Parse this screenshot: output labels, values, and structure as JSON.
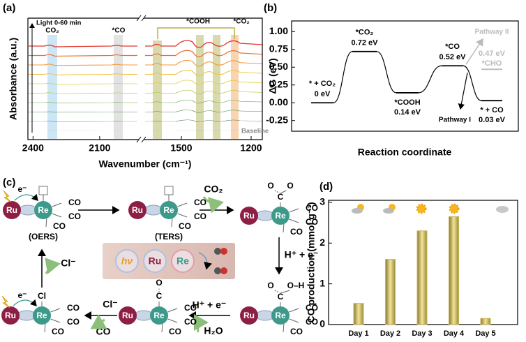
{
  "chart_data": [
    {
      "type": "spectra",
      "panel_label": "(a)",
      "ylabel": "Absorbance (a.u.)",
      "xlabel": "Wavenumber (cm⁻¹)",
      "xlim": [
        [
          2420,
          1930
        ],
        [
          1656,
          1152
        ]
      ],
      "xticks": [
        2400,
        2100,
        1500,
        1200
      ],
      "legend": "Light 0-60 min",
      "annotations": [
        "CO₂",
        "*CO",
        "*COOH",
        "*CO₂"
      ],
      "baseline": "Baseline"
    },
    {
      "type": "energy",
      "panel_label": "(b)",
      "ylabel": "ΔG (eV)",
      "xlabel": "Reaction coordinate",
      "ylim": [
        -0.4,
        1.15
      ],
      "yticks": [
        {
          "value": -0.25,
          "label": "-0.25"
        },
        {
          "value": 0,
          "label": "0.00"
        },
        {
          "value": 0.25,
          "label": "0.25"
        },
        {
          "value": 0.5,
          "label": "0.50"
        },
        {
          "value": 0.75,
          "label": "0.75"
        },
        {
          "value": 1,
          "label": "1.00"
        }
      ],
      "color": "#000000",
      "levels": [
        {
          "name": "* + CO₂",
          "value": 0,
          "value_label": "0 eV"
        },
        {
          "name": "*CO₂",
          "value": 0.72,
          "value_label": "0.72 eV"
        },
        {
          "name": "*COOH",
          "value": 0.14,
          "value_label": "0.14 eV"
        },
        {
          "name": "*CO",
          "value": 0.52,
          "value_label": "0.52 eV"
        },
        {
          "name": "* + CO",
          "value": 0.03,
          "value_label": "0.03 eV"
        }
      ],
      "pathway_label": "Pathway I",
      "branch": {
        "name": "*CHO",
        "value": 0.47,
        "value_label": "0.47 eV",
        "label": "Pathway II",
        "color": "#bbbbbb"
      }
    },
    {
      "type": "bar",
      "panel_label": "(d)",
      "ylabel": "CO production (mmol g⁻¹)",
      "categories": [
        "Day 1",
        "Day 2",
        "Day 3",
        "Day 4",
        "Day 5"
      ],
      "values": [
        0.52,
        1.6,
        2.3,
        2.65,
        0.15
      ],
      "color": "#c8b45a",
      "ylim": [
        0,
        3.05
      ],
      "yticks": [
        0,
        1,
        2,
        3
      ]
    }
  ],
  "scheme": {
    "panel_label": "(c)",
    "complexes": [
      {
        "metals": [
          "Ru",
          "Re"
        ],
        "ligands": [
          "CO",
          "CO",
          "CO"
        ],
        "electron": "e⁻",
        "label": "(OERS)"
      },
      {
        "metals": [
          "Ru",
          "Re"
        ],
        "ligands": [
          "CO",
          "CO",
          "CO"
        ],
        "label": "(TERS)"
      },
      {
        "metals": [
          "Ru",
          "Re"
        ],
        "ligands": [
          "CO",
          "CO",
          "CO"
        ],
        "adsorbate": [
          "O",
          "C",
          "O"
        ]
      },
      {
        "metals": [
          "Ru",
          "Re"
        ],
        "ligands": [
          "CO",
          "CO",
          "CO"
        ],
        "adsorbate": [
          "O",
          "C",
          "O–H"
        ]
      },
      {
        "metals": [
          "Ru",
          "Re"
        ],
        "ligands": [
          "CO",
          "CO",
          "CO"
        ],
        "adsorbate": [
          "O",
          "C"
        ]
      },
      {
        "metals": [
          "Ru",
          "Re"
        ],
        "ligands": [
          "CO",
          "CO",
          "CO"
        ],
        "adsorbate": [
          "Cl"
        ],
        "electron": "e⁻"
      }
    ],
    "steps": [
      "CO₂",
      "H⁺ + e⁻",
      "H⁺ + e⁻",
      "H₂O",
      "Cl⁻",
      "CO",
      "Cl⁻"
    ],
    "inset": [
      "hν",
      "Ru",
      "Re"
    ]
  }
}
